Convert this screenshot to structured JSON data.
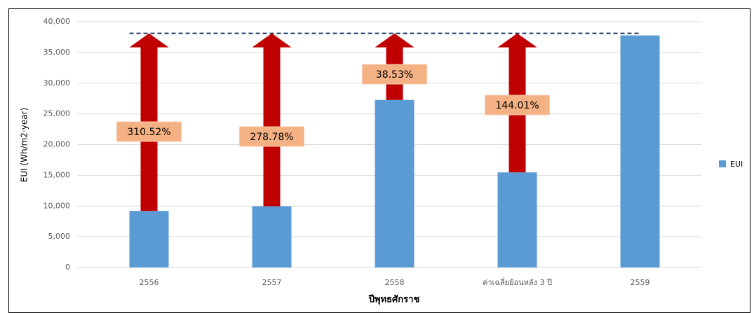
{
  "chart_data": {
    "type": "bar",
    "x_label": "ปีพุทธศักราช",
    "y_label": "EUI (Wh/m2·year)",
    "categories": [
      "2556",
      "2557",
      "2558",
      "ค่าเฉลี่ยย้อนหลัง 3 ปี",
      "2559"
    ],
    "series": [
      {
        "name": "EUI",
        "color": "#5b9bd5",
        "values": [
          9200,
          9970,
          27265,
          15480,
          37770
        ]
      }
    ],
    "annotations": [
      "310.52%",
      "278.78%",
      "38.53%",
      "144.01%"
    ],
    "ylim": [
      0,
      40000
    ],
    "yticks": [
      {
        "value": 0,
        "label": "0"
      },
      {
        "value": 5000,
        "label": "5,000"
      },
      {
        "value": 10000,
        "label": "10,000"
      },
      {
        "value": 15000,
        "label": "15,000"
      },
      {
        "value": 20000,
        "label": "20,000"
      },
      {
        "value": 25000,
        "label": "25,000"
      },
      {
        "value": 30000,
        "label": "30,000"
      },
      {
        "value": 35000,
        "label": "35,000"
      },
      {
        "value": 40000,
        "label": "40,000"
      }
    ],
    "grid": true,
    "legend": "right"
  }
}
